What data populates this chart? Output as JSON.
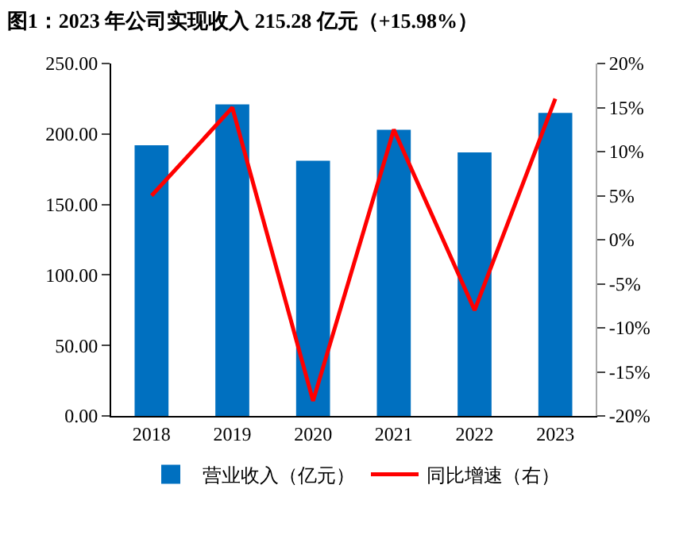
{
  "chart_data": {
    "type": "bar",
    "title": "图1：2023 年公司实现收入 215.28 亿元（+15.98%）",
    "categories": [
      "2018",
      "2019",
      "2020",
      "2021",
      "2022",
      "2023"
    ],
    "series": [
      {
        "name": "营业收入（亿元）",
        "color": "#0070c0",
        "values": [
          192,
          221,
          181,
          203,
          187,
          215
        ]
      },
      {
        "name": "同比增速（右）",
        "type": "line",
        "axis": "y2",
        "color": "#ff0000",
        "values": [
          5,
          15,
          -18.3,
          12.5,
          -8,
          16
        ]
      }
    ],
    "ylim": [
      0,
      250
    ],
    "yticks": [
      {
        "value": 0,
        "label": "0.00"
      },
      {
        "value": 50,
        "label": "50.00"
      },
      {
        "value": 100,
        "label": "100.00"
      },
      {
        "value": 150,
        "label": "150.00"
      },
      {
        "value": 200,
        "label": "200.00"
      },
      {
        "value": 250,
        "label": "250.00"
      }
    ],
    "y2lim": [
      -20,
      20
    ],
    "y2ticks": [
      {
        "value": -20,
        "label": "-20%"
      },
      {
        "value": -15,
        "label": "-15%"
      },
      {
        "value": -10,
        "label": "-10%"
      },
      {
        "value": -5,
        "label": "-5%"
      },
      {
        "value": 0,
        "label": "0%"
      },
      {
        "value": 5,
        "label": "5%"
      },
      {
        "value": 10,
        "label": "10%"
      },
      {
        "value": 15,
        "label": "15%"
      },
      {
        "value": 20,
        "label": "20%"
      }
    ],
    "legend": "bottom",
    "marker": "none",
    "line_style": "solid"
  }
}
